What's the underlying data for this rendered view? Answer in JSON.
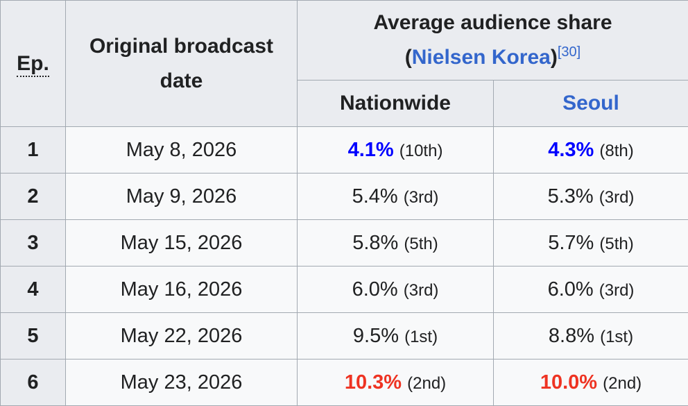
{
  "header": {
    "ep": "Ep.",
    "date": "Original broadcast date",
    "share_line1": "Average audience share",
    "share_open": "(",
    "share_link": "Nielsen Korea",
    "share_close": ")",
    "share_ref": "[30]",
    "nationwide": "Nationwide",
    "seoul": "Seoul"
  },
  "rows": [
    {
      "ep": "1",
      "date": "May 8, 2026",
      "nat": "4.1%",
      "nat_rank": "(10th)",
      "seoul": "4.3%",
      "seoul_rank": "(8th)"
    },
    {
      "ep": "2",
      "date": "May 9, 2026",
      "nat": "5.4%",
      "nat_rank": "(3rd)",
      "seoul": "5.3%",
      "seoul_rank": "(3rd)"
    },
    {
      "ep": "3",
      "date": "May 15, 2026",
      "nat": "5.8%",
      "nat_rank": "(5th)",
      "seoul": "5.7%",
      "seoul_rank": "(5th)"
    },
    {
      "ep": "4",
      "date": "May 16, 2026",
      "nat": "6.0%",
      "nat_rank": "(3rd)",
      "seoul": "6.0%",
      "seoul_rank": "(3rd)"
    },
    {
      "ep": "5",
      "date": "May 22, 2026",
      "nat": "9.5%",
      "nat_rank": "(1st)",
      "seoul": "8.8%",
      "seoul_rank": "(1st)"
    },
    {
      "ep": "6",
      "date": "May 23, 2026",
      "nat": "10.3%",
      "nat_rank": "(2nd)",
      "seoul": "10.0%",
      "seoul_rank": "(2nd)"
    }
  ],
  "colors": {
    "lowest": "#0000ff",
    "highest": "#ee3322",
    "link": "#3366cc"
  }
}
